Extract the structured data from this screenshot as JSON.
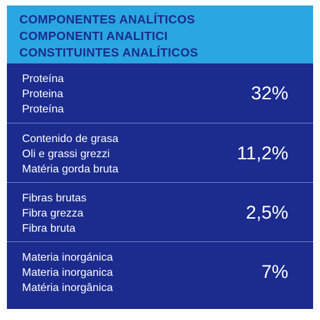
{
  "header": {
    "lines": [
      "COMPONENTES ANALÍTICOS",
      "COMPONENTI ANALITICI",
      "CONSTITUINTES ANALÍTICOS"
    ]
  },
  "table": {
    "rows": [
      {
        "labels": [
          "Proteína",
          "Proteina",
          "Proteína"
        ],
        "value": "32%"
      },
      {
        "labels": [
          "Contenido de grasa",
          "Oli e grassi grezzi",
          "Matéria gorda bruta"
        ],
        "value": "11,2%"
      },
      {
        "labels": [
          "Fibras brutas",
          "Fibra grezza",
          "Fibra bruta"
        ],
        "value": "2,5%"
      },
      {
        "labels": [
          "Materia inorgánica",
          "Materia inorganica",
          "Matéria inorgânica"
        ],
        "value": "7%"
      }
    ]
  }
}
